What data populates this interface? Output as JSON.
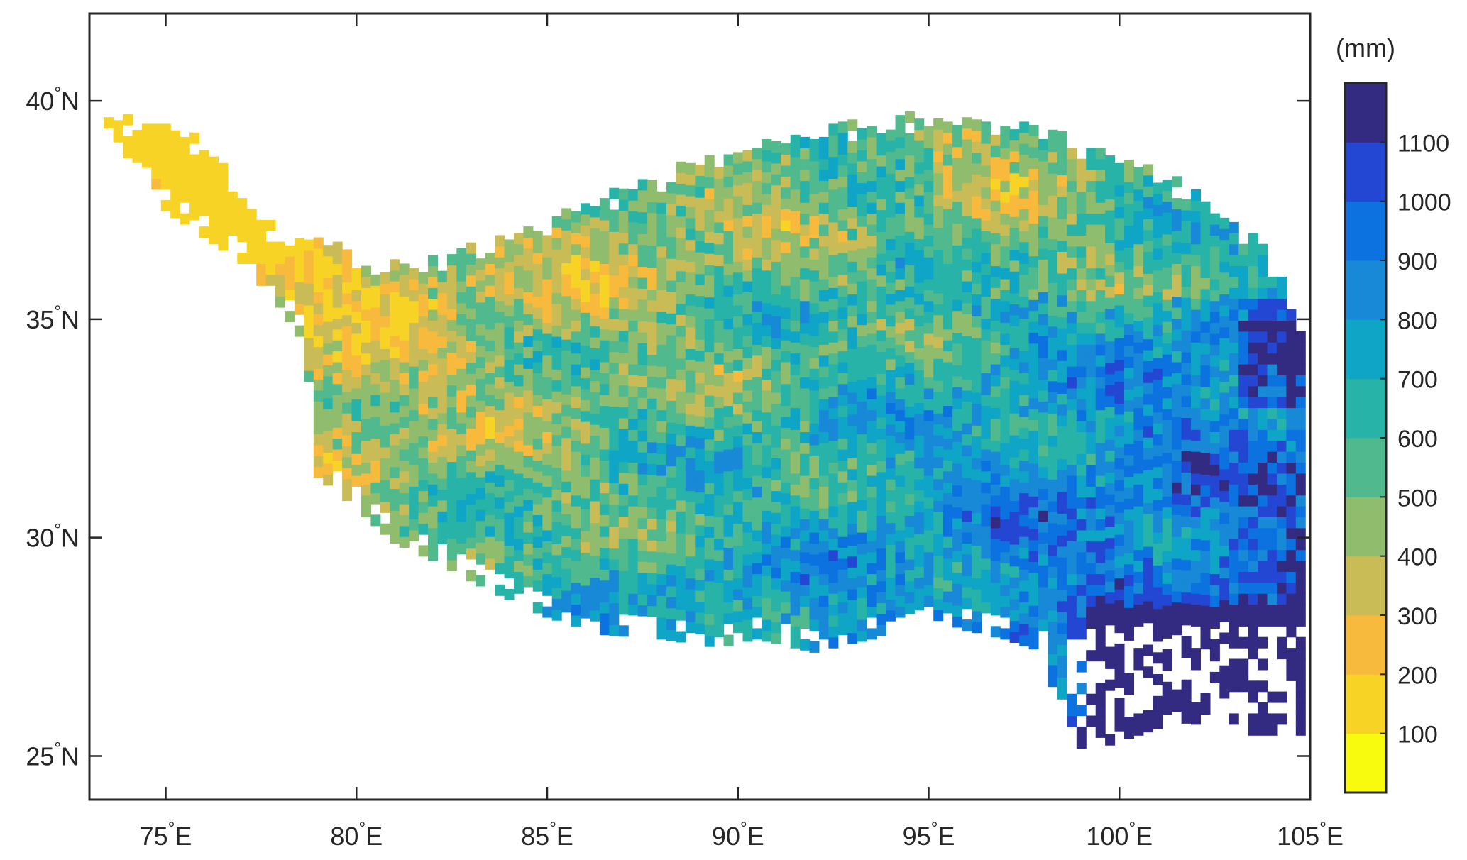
{
  "map": {
    "type": "gridded-raster-map",
    "region": "Tibetan Plateau",
    "lon_range": [
      73,
      105
    ],
    "lat_range": [
      24,
      42
    ],
    "lon_ticks": [
      {
        "value": 75,
        "label": "75",
        "suffix": "E"
      },
      {
        "value": 80,
        "label": "80",
        "suffix": "E"
      },
      {
        "value": 85,
        "label": "85",
        "suffix": "E"
      },
      {
        "value": 90,
        "label": "90",
        "suffix": "E"
      },
      {
        "value": 95,
        "label": "95",
        "suffix": "E"
      },
      {
        "value": 100,
        "label": "100",
        "suffix": "E"
      },
      {
        "value": 105,
        "label": "105",
        "suffix": "E"
      }
    ],
    "lat_ticks": [
      {
        "value": 40,
        "label": "40",
        "suffix": "N"
      },
      {
        "value": 35,
        "label": "35",
        "suffix": "N"
      },
      {
        "value": 30,
        "label": "30",
        "suffix": "N"
      },
      {
        "value": 25,
        "label": "25",
        "suffix": "N"
      }
    ],
    "degree_symbol": "°",
    "general_pattern": "lowest values (about 100–300 mm) in the north-west; increasing toward the south-east, exceeding 1100 mm in the far south-east"
  },
  "colorbar": {
    "unit_label": "(mm)",
    "range": [
      0,
      1200
    ],
    "bins": [
      {
        "min": 0,
        "max": 100,
        "color": "#f9fb0e"
      },
      {
        "min": 100,
        "max": 200,
        "color": "#f6d324"
      },
      {
        "min": 200,
        "max": 300,
        "color": "#f8ba3d"
      },
      {
        "min": 300,
        "max": 400,
        "color": "#c9bb56"
      },
      {
        "min": 400,
        "max": 500,
        "color": "#8fbc6d"
      },
      {
        "min": 500,
        "max": 600,
        "color": "#50b98d"
      },
      {
        "min": 600,
        "max": 700,
        "color": "#27b3a8"
      },
      {
        "min": 700,
        "max": 800,
        "color": "#0ea5c6"
      },
      {
        "min": 800,
        "max": 900,
        "color": "#1789d6"
      },
      {
        "min": 900,
        "max": 1000,
        "color": "#0c72e0"
      },
      {
        "min": 1000,
        "max": 1100,
        "color": "#2447d3"
      },
      {
        "min": 1100,
        "max": 1200,
        "color": "#332a82"
      }
    ],
    "tick_labels": [
      "100",
      "200",
      "300",
      "400",
      "500",
      "600",
      "700",
      "800",
      "900",
      "1000",
      "1100"
    ],
    "tick_values": [
      100,
      200,
      300,
      400,
      500,
      600,
      700,
      800,
      900,
      1000,
      1100
    ]
  }
}
